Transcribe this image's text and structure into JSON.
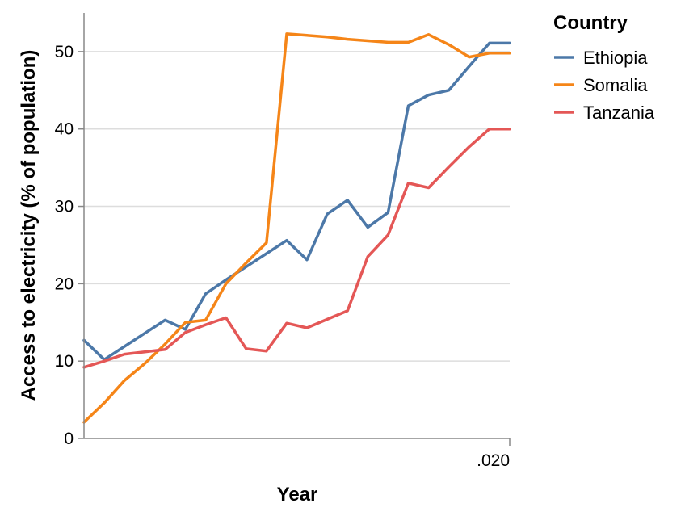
{
  "chart_data": {
    "type": "line",
    "xlabel": "Year",
    "ylabel": "Access to electricity (% of population)",
    "x_tick_labels": [
      ".020"
    ],
    "ylim": [
      0,
      55
    ],
    "y_ticks": [
      0,
      10,
      20,
      30,
      40,
      50
    ],
    "grid": "horizontal",
    "legend": {
      "title": "Country",
      "placement": "top-right"
    },
    "x": [
      1,
      2,
      3,
      4,
      5,
      6,
      7,
      8,
      9,
      10,
      11,
      12,
      13,
      14,
      15,
      16,
      17,
      18,
      19,
      20,
      21,
      22
    ],
    "series": [
      {
        "name": "Ethiopia",
        "color": "#4c78a8",
        "values": [
          12.7,
          10.2,
          11.9,
          13.6,
          15.3,
          14.1,
          18.7,
          20.5,
          22.2,
          23.9,
          25.6,
          23.1,
          29.0,
          30.8,
          27.3,
          29.2,
          43.0,
          44.4,
          45.0,
          48.1,
          51.1,
          51.1
        ]
      },
      {
        "name": "Somalia",
        "color": "#f58518",
        "values": [
          2.1,
          4.6,
          7.5,
          9.7,
          12.2,
          15.0,
          15.3,
          20.0,
          22.7,
          25.3,
          52.3,
          52.1,
          51.9,
          51.6,
          51.4,
          51.2,
          51.2,
          52.2,
          50.9,
          49.3,
          49.8,
          49.8
        ]
      },
      {
        "name": "Tanzania",
        "color": "#e45756",
        "values": [
          9.2,
          10.0,
          10.9,
          11.2,
          11.5,
          13.7,
          14.7,
          15.6,
          11.6,
          11.3,
          14.9,
          14.3,
          15.4,
          16.5,
          23.5,
          26.3,
          33.0,
          32.4,
          35.1,
          37.7,
          40.0,
          40.0
        ]
      }
    ]
  }
}
